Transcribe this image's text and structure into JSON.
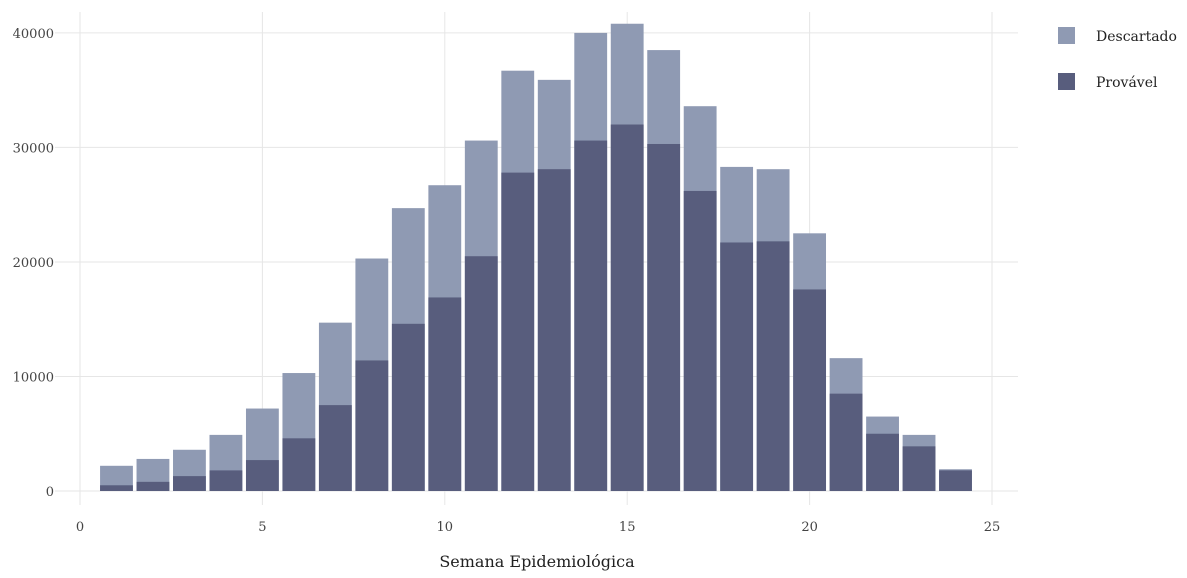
{
  "chart_data": {
    "type": "bar",
    "barmode": "overlay",
    "title": "",
    "xlabel": "Semana Epidemiológica",
    "ylabel": "",
    "xlim": [
      0,
      25
    ],
    "ylim": [
      0,
      42000
    ],
    "xticks": [
      0,
      5,
      10,
      15,
      20,
      25
    ],
    "yticks": [
      0,
      10000,
      20000,
      30000,
      40000
    ],
    "grid": true,
    "legend_position": "top-right",
    "x": [
      1,
      2,
      3,
      4,
      5,
      6,
      7,
      8,
      9,
      10,
      11,
      12,
      13,
      14,
      15,
      16,
      17,
      18,
      19,
      20,
      21,
      22,
      23,
      24
    ],
    "series": [
      {
        "name": "Descartado",
        "color": "#8f9ab3",
        "values": [
          2200,
          2800,
          3600,
          4900,
          7200,
          10300,
          14700,
          20300,
          24700,
          26700,
          30600,
          36700,
          35900,
          40000,
          40800,
          38500,
          33600,
          28300,
          28100,
          22500,
          11600,
          6500,
          4900,
          1900
        ]
      },
      {
        "name": "Provável",
        "color": "#585d7d",
        "values": [
          500,
          800,
          1300,
          1800,
          2700,
          4600,
          7500,
          11400,
          14600,
          16900,
          20500,
          27800,
          28100,
          30600,
          32000,
          30300,
          26200,
          21700,
          21800,
          17600,
          8500,
          5000,
          3900,
          1800
        ]
      }
    ]
  }
}
